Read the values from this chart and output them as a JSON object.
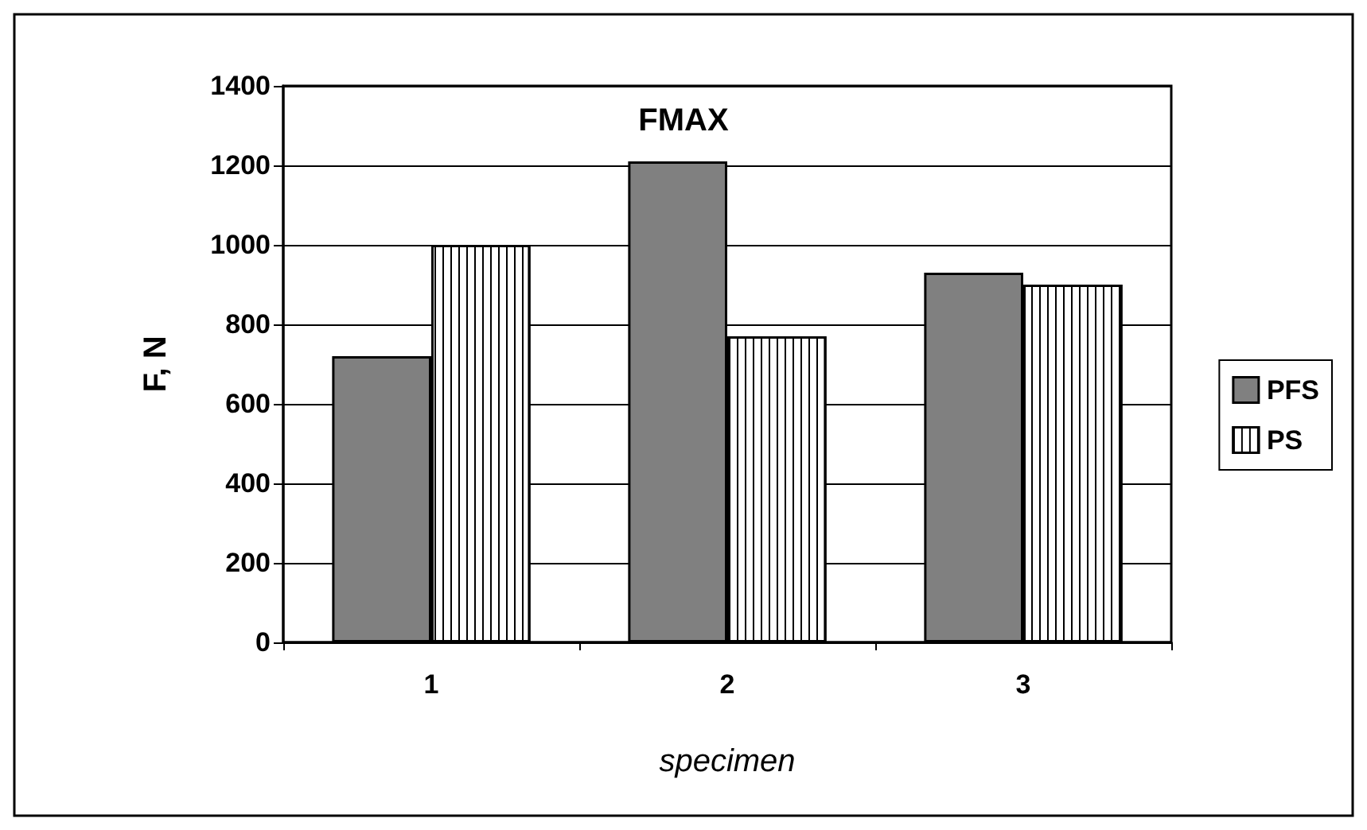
{
  "chart_data": {
    "type": "bar",
    "xlabel": "specimen",
    "ylabel": "F, N",
    "categories": [
      "1",
      "2",
      "3"
    ],
    "series": [
      {
        "name": "PFS",
        "color": "#808080",
        "values": [
          720,
          1210,
          930
        ]
      },
      {
        "name": "PS",
        "color": "#ffffff",
        "values": [
          1000,
          770,
          900
        ]
      }
    ],
    "ylim": [
      0,
      1400
    ],
    "yticks": [
      0,
      200,
      400,
      600,
      800,
      1000,
      1200,
      1400
    ],
    "grid": "y",
    "legend": "right",
    "annotations": [
      "FMAX"
    ]
  }
}
